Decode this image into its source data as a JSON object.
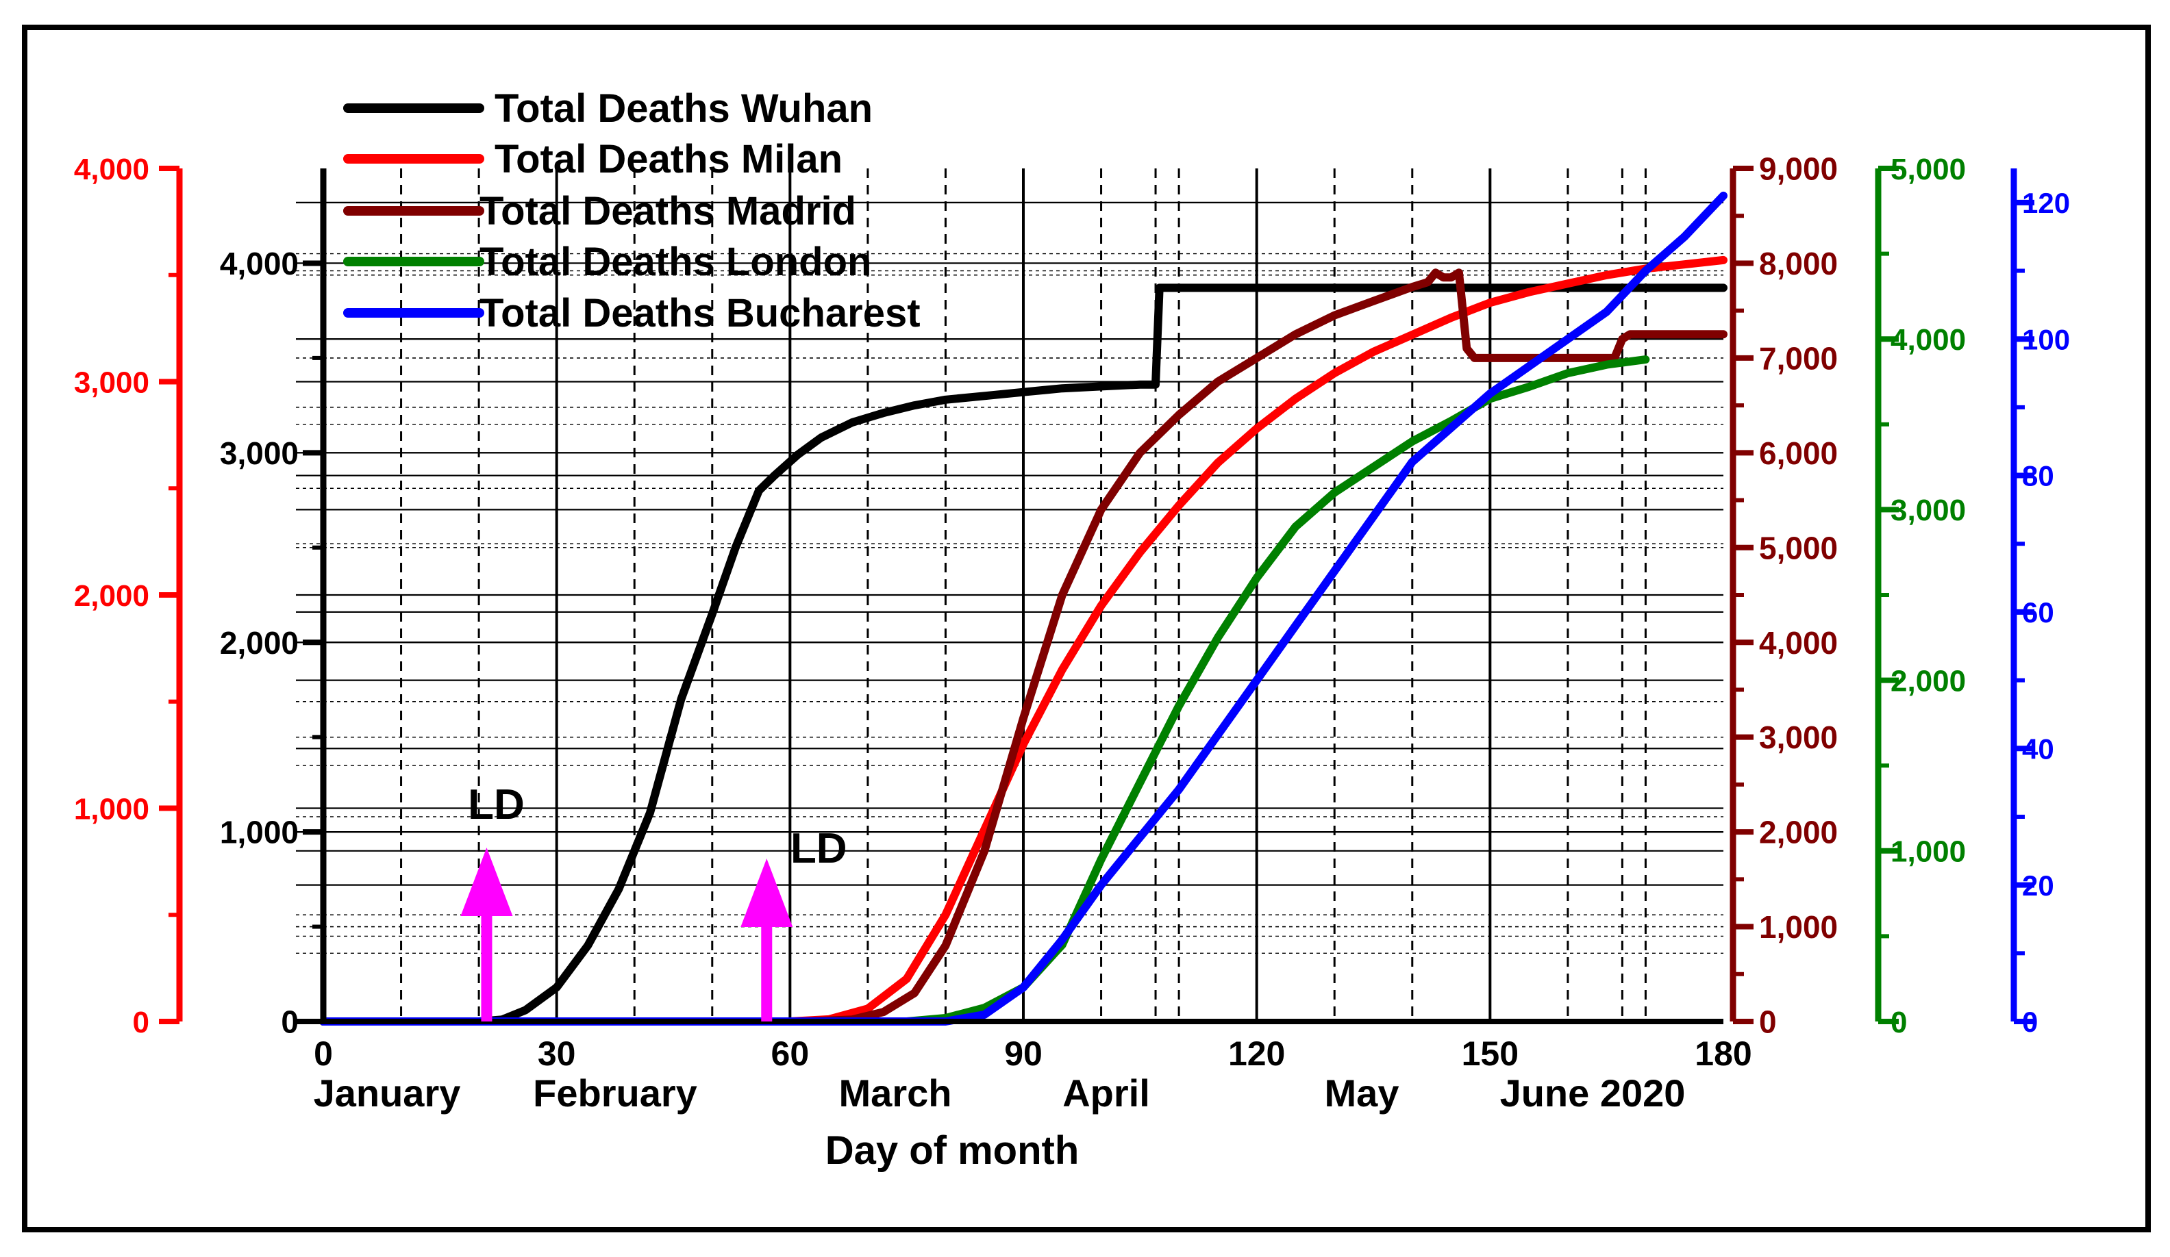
{
  "chart_data": {
    "type": "line",
    "title": "",
    "xlabel": "Day of month",
    "xlim": [
      0,
      180
    ],
    "x_ticks": [
      "0",
      "30",
      "60",
      "90",
      "120",
      "150",
      "180"
    ],
    "month_labels": [
      "January",
      "February",
      "March",
      "April",
      "May",
      "June 2020"
    ],
    "axes": {
      "wuhan": {
        "ylim": [
          0,
          4500
        ],
        "ticks": [
          "0",
          "1,000",
          "2,000",
          "3,000",
          "4,000"
        ],
        "color": "#000000"
      },
      "milan": {
        "ylim": [
          0,
          4000
        ],
        "ticks": [
          "0",
          "1,000",
          "2,000",
          "3,000",
          "4,000"
        ],
        "color": "#ff0000"
      },
      "madrid": {
        "ylim": [
          0,
          9000
        ],
        "ticks": [
          "0",
          "1,000",
          "2,000",
          "3,000",
          "4,000",
          "5,000",
          "6,000",
          "7,000",
          "8,000",
          "9,000"
        ],
        "color": "#800000"
      },
      "london": {
        "ylim": [
          0,
          5000
        ],
        "ticks": [
          "0",
          "1,000",
          "2,000",
          "3,000",
          "4,000",
          "5,000"
        ],
        "color": "#008000"
      },
      "bucharest": {
        "ylim": [
          0,
          125
        ],
        "ticks": [
          "0",
          "20",
          "40",
          "60",
          "80",
          "100",
          "120"
        ],
        "color": "#0000ff"
      }
    },
    "series": [
      {
        "name": "Total Deaths Wuhan",
        "axis": "wuhan",
        "color": "#000000",
        "x": [
          0,
          20,
          23,
          26,
          30,
          34,
          38,
          42,
          46,
          50,
          53,
          56,
          58,
          61,
          64,
          68,
          72,
          76,
          80,
          85,
          90,
          95,
          100,
          105,
          107,
          107.5,
          110,
          120,
          150,
          180
        ],
        "y": [
          0,
          0,
          10,
          60,
          180,
          400,
          700,
          1100,
          1700,
          2150,
          2500,
          2800,
          2880,
          2990,
          3080,
          3160,
          3210,
          3250,
          3280,
          3300,
          3320,
          3340,
          3350,
          3360,
          3360,
          3870,
          3870,
          3870,
          3870,
          3870
        ]
      },
      {
        "name": "Total Deaths Milan",
        "axis": "milan",
        "color": "#ff0000",
        "x": [
          0,
          60,
          65,
          70,
          75,
          80,
          85,
          90,
          95,
          100,
          105,
          110,
          115,
          120,
          125,
          130,
          135,
          140,
          145,
          150,
          155,
          160,
          165,
          170,
          175,
          180
        ],
        "y": [
          0,
          0,
          10,
          60,
          200,
          500,
          900,
          1300,
          1650,
          1950,
          2200,
          2420,
          2620,
          2780,
          2920,
          3040,
          3140,
          3220,
          3300,
          3370,
          3420,
          3460,
          3500,
          3530,
          3550,
          3570
        ]
      },
      {
        "name": "Total Deaths Madrid",
        "axis": "madrid",
        "color": "#800000",
        "x": [
          0,
          62,
          68,
          72,
          76,
          80,
          85,
          90,
          95,
          100,
          105,
          110,
          115,
          120,
          125,
          130,
          135,
          140,
          142,
          143,
          144,
          145,
          146,
          147,
          148,
          150,
          160,
          165,
          166,
          167,
          168,
          170,
          180
        ],
        "y": [
          0,
          0,
          20,
          100,
          300,
          800,
          1800,
          3200,
          4500,
          5400,
          6000,
          6400,
          6750,
          7000,
          7250,
          7450,
          7600,
          7750,
          7800,
          7900,
          7850,
          7850,
          7900,
          7100,
          7000,
          7000,
          7000,
          7000,
          7000,
          7200,
          7250,
          7250,
          7250
        ]
      },
      {
        "name": "Total Deaths  London",
        "axis": "london",
        "color": "#008000",
        "x": [
          0,
          75,
          80,
          85,
          90,
          95,
          100,
          105,
          110,
          115,
          120,
          125,
          130,
          135,
          140,
          145,
          150,
          155,
          160,
          165,
          170
        ],
        "y": [
          0,
          0,
          20,
          80,
          200,
          450,
          950,
          1400,
          1850,
          2250,
          2600,
          2900,
          3100,
          3250,
          3400,
          3520,
          3650,
          3720,
          3800,
          3850,
          3880
        ]
      },
      {
        "name": "Total Deaths Bucharest",
        "axis": "bucharest",
        "color": "#0000ff",
        "x": [
          0,
          80,
          85,
          90,
          95,
          100,
          105,
          110,
          115,
          120,
          125,
          130,
          135,
          140,
          145,
          150,
          155,
          160,
          165,
          170,
          175,
          180
        ],
        "y": [
          0,
          0,
          1,
          5,
          12,
          20,
          27,
          34,
          42,
          50,
          58,
          66,
          74,
          82,
          87,
          92,
          96,
          100,
          104,
          110,
          115,
          121
        ]
      }
    ],
    "annotations": [
      {
        "text": "LD",
        "x": 21
      },
      {
        "text": "LD",
        "x": 57
      }
    ]
  }
}
